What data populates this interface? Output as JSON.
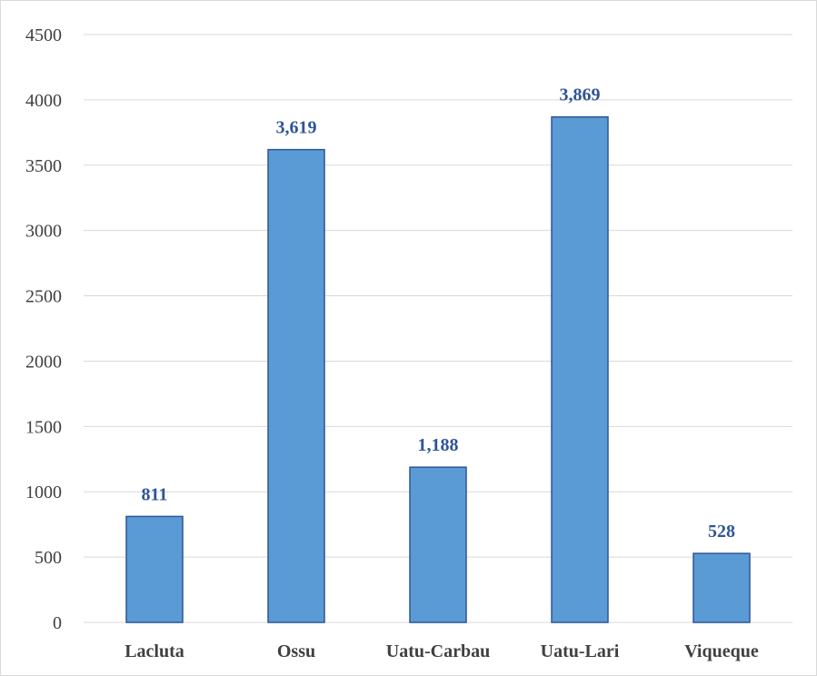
{
  "chart_data": {
    "type": "bar",
    "categories": [
      "Lacluta",
      "Ossu",
      "Uatu-Carbau",
      "Uatu-Lari",
      "Viqueque"
    ],
    "values": [
      811,
      3619,
      1188,
      3869,
      528
    ],
    "data_labels": [
      "811",
      "3,619",
      "1,188",
      "3,869",
      "528"
    ],
    "yticks": [
      "0",
      "500",
      "1000",
      "1500",
      "2000",
      "2500",
      "3000",
      "3500",
      "4000",
      "4500"
    ],
    "ylim": [
      0,
      4500
    ],
    "grid": true,
    "legend": "none",
    "bar_color": "#5b9bd5",
    "bar_edge_color": "#2f5597",
    "label_color": "#2f5597"
  }
}
